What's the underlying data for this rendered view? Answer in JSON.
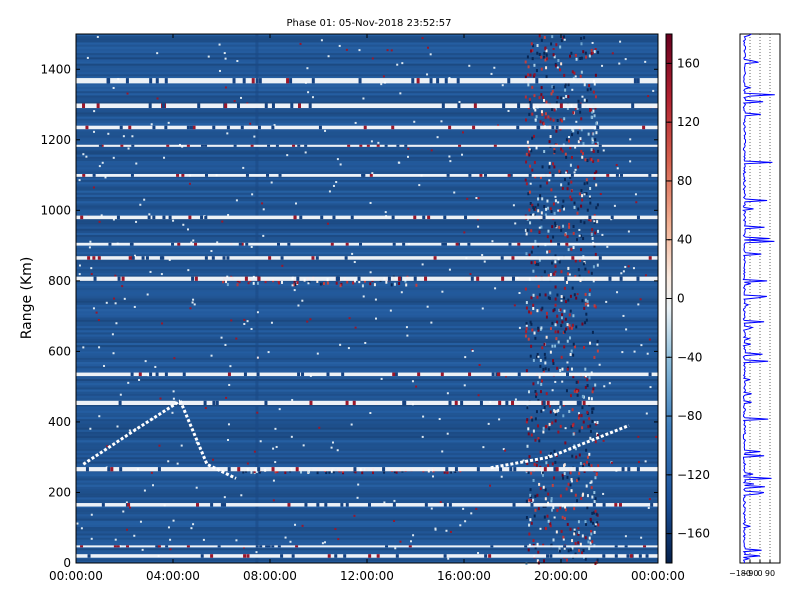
{
  "chart_data": [
    {
      "type": "heatmap",
      "title": "Phase 01: 05-Nov-2018 23:52:57",
      "xlabel": "",
      "ylabel": "Range (Km)",
      "x_ticks": [
        "00:00:00",
        "04:00:00",
        "08:00:00",
        "12:00:00",
        "16:00:00",
        "20:00:00",
        "00:00:00"
      ],
      "xlim_hours": [
        0,
        24
      ],
      "y_ticks": [
        0,
        200,
        400,
        600,
        800,
        1000,
        1200,
        1400
      ],
      "ylim": [
        0,
        1500
      ],
      "colorscale": "RdBu_r",
      "color_range": [
        -180,
        180
      ],
      "colorbar_ticks": [
        160,
        120,
        80,
        40,
        0,
        -40,
        -80,
        -120,
        -160
      ],
      "colorbar_labels": [
        "160",
        "120",
        "80",
        "40",
        "0",
        "−40",
        "−80",
        "−120",
        "−160"
      ],
      "background_value": -150,
      "gap_bands_km": [
        [
          15,
          25
        ],
        [
          45,
          50
        ],
        [
          160,
          170
        ],
        [
          260,
          272
        ],
        [
          448,
          460
        ],
        [
          530,
          540
        ],
        [
          800,
          812
        ],
        [
          860,
          870
        ],
        [
          900,
          908
        ],
        [
          975,
          985
        ],
        [
          1095,
          1103
        ],
        [
          1180,
          1186
        ],
        [
          1230,
          1240
        ],
        [
          1290,
          1303
        ],
        [
          1360,
          1375
        ]
      ],
      "track_segments": [
        {
          "from": [
            0.3,
            280
          ],
          "to": [
            2.5,
            380
          ],
          "ramp_to": [
            4.3,
            460
          ]
        },
        {
          "from": [
            4.3,
            460
          ],
          "to": [
            5.4,
            280
          ],
          "ramp_to": [
            6.6,
            240
          ]
        },
        {
          "from": [
            17.1,
            270
          ],
          "to": [
            19.5,
            300
          ],
          "ramp_to": [
            22.8,
            390
          ]
        }
      ],
      "hot_regions": [
        {
          "hours": [
            18.5,
            21.5
          ],
          "km": [
            0,
            1500
          ],
          "density": "high"
        },
        {
          "hours": [
            6.0,
            14.0
          ],
          "km": [
            790,
            815
          ],
          "density": "medium"
        },
        {
          "hours": [
            6.5,
            16.0
          ],
          "km": [
            260,
            270
          ],
          "density": "medium"
        }
      ]
    },
    {
      "type": "line",
      "title": "",
      "xlabel": "",
      "ylabel": "",
      "x_ticks": [
        "−180",
        "−90",
        "0",
        "90"
      ],
      "xlim": [
        -180,
        180
      ],
      "ylim": [
        0,
        1500
      ],
      "series_color": "#0000ff",
      "gridlines_x": [
        -90,
        0,
        90
      ]
    }
  ]
}
